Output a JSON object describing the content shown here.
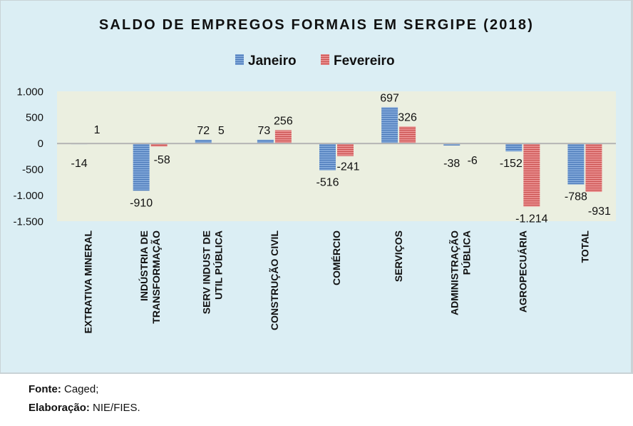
{
  "chart_data": {
    "type": "bar",
    "title": "SALDO DE EMPREGOS FORMAIS EM SERGIPE (2018)",
    "xlabel": "",
    "ylabel": "",
    "ylim": [
      -1500,
      1000
    ],
    "yticks": [
      1000,
      500,
      0,
      -500,
      -1000,
      -1500
    ],
    "ytick_labels": [
      "1.000",
      "500",
      "0",
      "-500",
      "-1.000",
      "-1.500"
    ],
    "grid": false,
    "legend_position": "top",
    "categories": [
      [
        "EXTRATIVA MINERAL"
      ],
      [
        "INDÚSTRIA DE",
        "TRANSFORMAÇÃO"
      ],
      [
        "SERV INDUST DE",
        "UTIL PÚBLICA"
      ],
      [
        "CONSTRUÇÃO CIVIL"
      ],
      [
        "COMÉRCIO"
      ],
      [
        "SERVIÇOS"
      ],
      [
        "ADMINISTRAÇÃO",
        "PÚBLICA"
      ],
      [
        "AGROPECUÁRIA"
      ],
      [
        "TOTAL"
      ]
    ],
    "series": [
      {
        "name": "Janeiro",
        "color": "#4f81bd",
        "values": [
          -14,
          -910,
          72,
          73,
          -516,
          697,
          -38,
          -152,
          -788
        ],
        "labels": [
          "-14",
          "-910",
          "72",
          "73",
          "-516",
          "697",
          "-38",
          "-152",
          "-788"
        ]
      },
      {
        "name": "Fevereiro",
        "color": "#c0504d",
        "values": [
          1,
          -58,
          5,
          256,
          -241,
          326,
          -6,
          -1214,
          -931
        ],
        "labels": [
          "1",
          "-58",
          "5",
          "256",
          "-241",
          "326",
          "-6",
          "-1.214",
          "-931"
        ]
      }
    ]
  },
  "footer": {
    "source_label": "Fonte:",
    "source_value": "Caged;",
    "author_label": "Elaboração:",
    "author_value": "NIE/FIES."
  }
}
